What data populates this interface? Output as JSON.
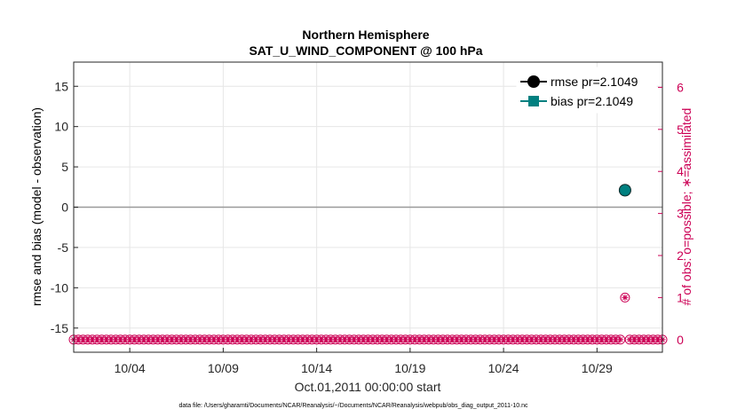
{
  "chart_data": {
    "type": "scatter",
    "title": "Northern Hemisphere",
    "subtitle": "SAT_U_WIND_COMPONENT @ 100 hPa",
    "xlabel": "Oct.01,2011 00:00:00 start",
    "ylabel": "rmse and bias (model - observation)",
    "ylabel_right": "# of obs: o=possible; ∗=assimilated",
    "footer": "data file: /Users/gharamti/Documents/NCAR/Reanalysis/~/Documents/NCAR/Reanalysis/webpub/obs_diag_output_2011-10.nc",
    "x_tick_labels": [
      "10/04",
      "10/09",
      "10/14",
      "10/19",
      "10/24",
      "10/29"
    ],
    "x_tick_days": [
      4,
      9,
      14,
      19,
      24,
      29
    ],
    "xlim_days": [
      1.0,
      32.5
    ],
    "ylim": [
      -18,
      18
    ],
    "y_ticks": [
      -15,
      -10,
      -5,
      0,
      5,
      10,
      15
    ],
    "ylim_right": [
      -0.3,
      6.6
    ],
    "y_ticks_right": [
      0,
      1,
      2,
      3,
      4,
      5,
      6
    ],
    "zero_line": 0,
    "grid": true,
    "legend_position": "top-right",
    "series": [
      {
        "name": "rmse pr=2.1049",
        "color": "#000000",
        "marker": "circle",
        "x_days": [
          30.5
        ],
        "values": [
          2.1049
        ]
      },
      {
        "name": "bias pr=2.1049",
        "color": "#008080",
        "marker": "square",
        "x_days": [
          30.5
        ],
        "values": [
          2.1049
        ]
      }
    ],
    "obs_possible": {
      "color": "#cc0055",
      "marker": "o",
      "step_days": 0.25,
      "x_start_day": 1.0,
      "x_end_day": 32.5,
      "baseline_count": 0,
      "nonzero": [
        {
          "day": 30.5,
          "count": 1
        }
      ]
    },
    "obs_assimilated": {
      "color": "#cc0055",
      "marker": "*",
      "step_days": 0.25,
      "x_start_day": 1.0,
      "x_end_day": 32.5,
      "baseline_count": 0,
      "nonzero": [
        {
          "day": 30.5,
          "count": 1
        }
      ]
    }
  }
}
